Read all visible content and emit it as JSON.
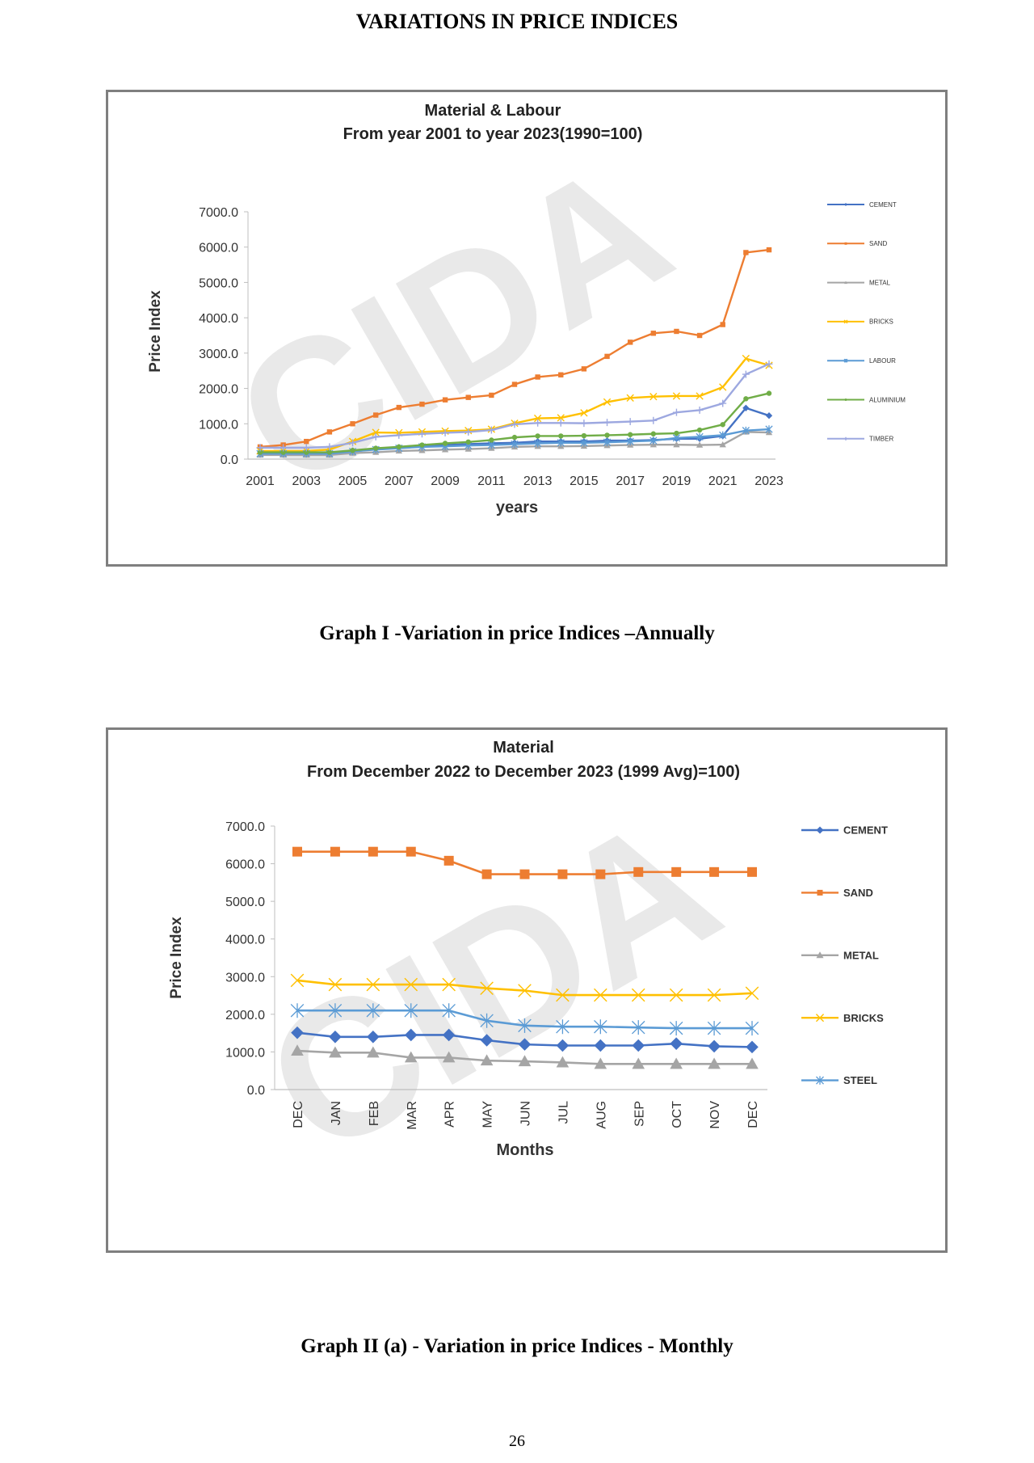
{
  "page": {
    "title": "VARIATIONS IN PRICE INDICES",
    "caption_1": "Graph I -Variation in price Indices –Annually",
    "caption_2": "Graph II (a) - Variation in price Indices - Monthly",
    "page_number": "26",
    "watermark": "CIDA"
  },
  "chart_data": [
    {
      "type": "line",
      "title": "Material & Labour",
      "subtitle": "From year 2001 to year 2023(1990=100)",
      "xlabel": "years",
      "ylabel": "Price Index",
      "ylim": [
        0,
        7000
      ],
      "yticks": [
        "0.0",
        "1000.0",
        "2000.0",
        "3000.0",
        "4000.0",
        "5000.0",
        "6000.0",
        "7000.0"
      ],
      "x": [
        2001,
        2002,
        2003,
        2004,
        2005,
        2006,
        2007,
        2008,
        2009,
        2010,
        2011,
        2012,
        2013,
        2014,
        2015,
        2016,
        2017,
        2018,
        2019,
        2020,
        2021,
        2022,
        2023
      ],
      "xtick_labels": [
        "2001",
        "2003",
        "2005",
        "2007",
        "2009",
        "2011",
        "2013",
        "2015",
        "2017",
        "2019",
        "2021",
        "2023"
      ],
      "grid": false,
      "legend": "right",
      "series": [
        {
          "name": "CEMENT",
          "color": "#4472C4",
          "marker": "diamond",
          "values": [
            169,
            169,
            169,
            169,
            231,
            292,
            331,
            369,
            400,
            423,
            446,
            462,
            500,
            500,
            500,
            523,
            523,
            538,
            577,
            577,
            654,
            1446,
            1231
          ]
        },
        {
          "name": "SAND",
          "color": "#ED7D31",
          "marker": "square",
          "values": [
            346,
            400,
            500,
            769,
            1000,
            1246,
            1462,
            1554,
            1677,
            1746,
            1808,
            2115,
            2323,
            2385,
            2554,
            2908,
            3308,
            3562,
            3615,
            3500,
            3808,
            5846,
            5923
          ]
        },
        {
          "name": "METAL",
          "color": "#A5A5A5",
          "marker": "triangle",
          "values": [
            115,
            115,
            115,
            115,
            169,
            192,
            231,
            246,
            269,
            285,
            308,
            346,
            362,
            362,
            369,
            385,
            400,
            408,
            408,
            400,
            408,
            769,
            754
          ]
        },
        {
          "name": "BRICKS",
          "color": "#FFC000",
          "marker": "x",
          "values": [
            231,
            231,
            231,
            269,
            500,
            754,
            746,
            769,
            792,
            808,
            846,
            1015,
            1154,
            1169,
            1308,
            1615,
            1731,
            1769,
            1785,
            1785,
            2038,
            2846,
            2654
          ]
        },
        {
          "name": "LABOUR",
          "color": "#5B9BD5",
          "marker": "star",
          "values": [
            154,
            154,
            154,
            154,
            215,
            269,
            308,
            346,
            362,
            385,
            400,
            423,
            446,
            462,
            462,
            477,
            500,
            523,
            600,
            631,
            677,
            808,
            846
          ]
        },
        {
          "name": "ALUMINIUM",
          "color": "#70AD47",
          "marker": "circle",
          "values": [
            192,
            192,
            192,
            192,
            246,
            308,
            346,
            400,
            446,
            485,
            538,
            615,
            654,
            654,
            662,
            677,
            692,
            715,
            731,
            823,
            977,
            1708,
            1862
          ]
        },
        {
          "name": "TIMBER",
          "color": "#9DA8E0",
          "marker": "plus",
          "values": [
            323,
            323,
            323,
            346,
            462,
            631,
            677,
            715,
            746,
            769,
            823,
            985,
            1023,
            1023,
            1015,
            1038,
            1062,
            1092,
            1323,
            1385,
            1577,
            2400,
            2692
          ]
        }
      ]
    },
    {
      "type": "line",
      "title": "Material",
      "subtitle": "From  December 2022  to December   2023 (1999 Avg)=100)",
      "xlabel": "Months",
      "ylabel": "Price Index",
      "ylim": [
        0,
        7000
      ],
      "yticks": [
        "0.0",
        "1000.0",
        "2000.0",
        "3000.0",
        "4000.0",
        "5000.0",
        "6000.0",
        "7000.0"
      ],
      "categories": [
        "DEC",
        "JAN",
        "FEB",
        "MAR",
        "APR",
        "MAY",
        "JUN",
        "JUL",
        "AUG",
        "SEP",
        "OCT",
        "NOV",
        "DEC"
      ],
      "grid": false,
      "legend": "right",
      "series": [
        {
          "name": "CEMENT",
          "color": "#4472C4",
          "marker": "diamond",
          "values": [
            1510,
            1400,
            1400,
            1450,
            1450,
            1310,
            1200,
            1170,
            1170,
            1170,
            1220,
            1150,
            1130
          ]
        },
        {
          "name": "SAND",
          "color": "#ED7D31",
          "marker": "square",
          "values": [
            6320,
            6320,
            6320,
            6320,
            6080,
            5720,
            5720,
            5720,
            5720,
            5780,
            5780,
            5780,
            5780
          ]
        },
        {
          "name": "METAL",
          "color": "#A5A5A5",
          "marker": "triangle",
          "values": [
            1030,
            980,
            980,
            850,
            850,
            770,
            750,
            720,
            680,
            680,
            680,
            680,
            680
          ]
        },
        {
          "name": "BRICKS",
          "color": "#FFC000",
          "marker": "x",
          "values": [
            2900,
            2790,
            2790,
            2790,
            2790,
            2690,
            2630,
            2510,
            2510,
            2510,
            2510,
            2510,
            2560
          ]
        },
        {
          "name": "STEEL",
          "color": "#5B9BD5",
          "marker": "star",
          "values": [
            2100,
            2100,
            2100,
            2100,
            2100,
            1830,
            1700,
            1670,
            1670,
            1650,
            1630,
            1630,
            1630
          ]
        }
      ]
    }
  ]
}
